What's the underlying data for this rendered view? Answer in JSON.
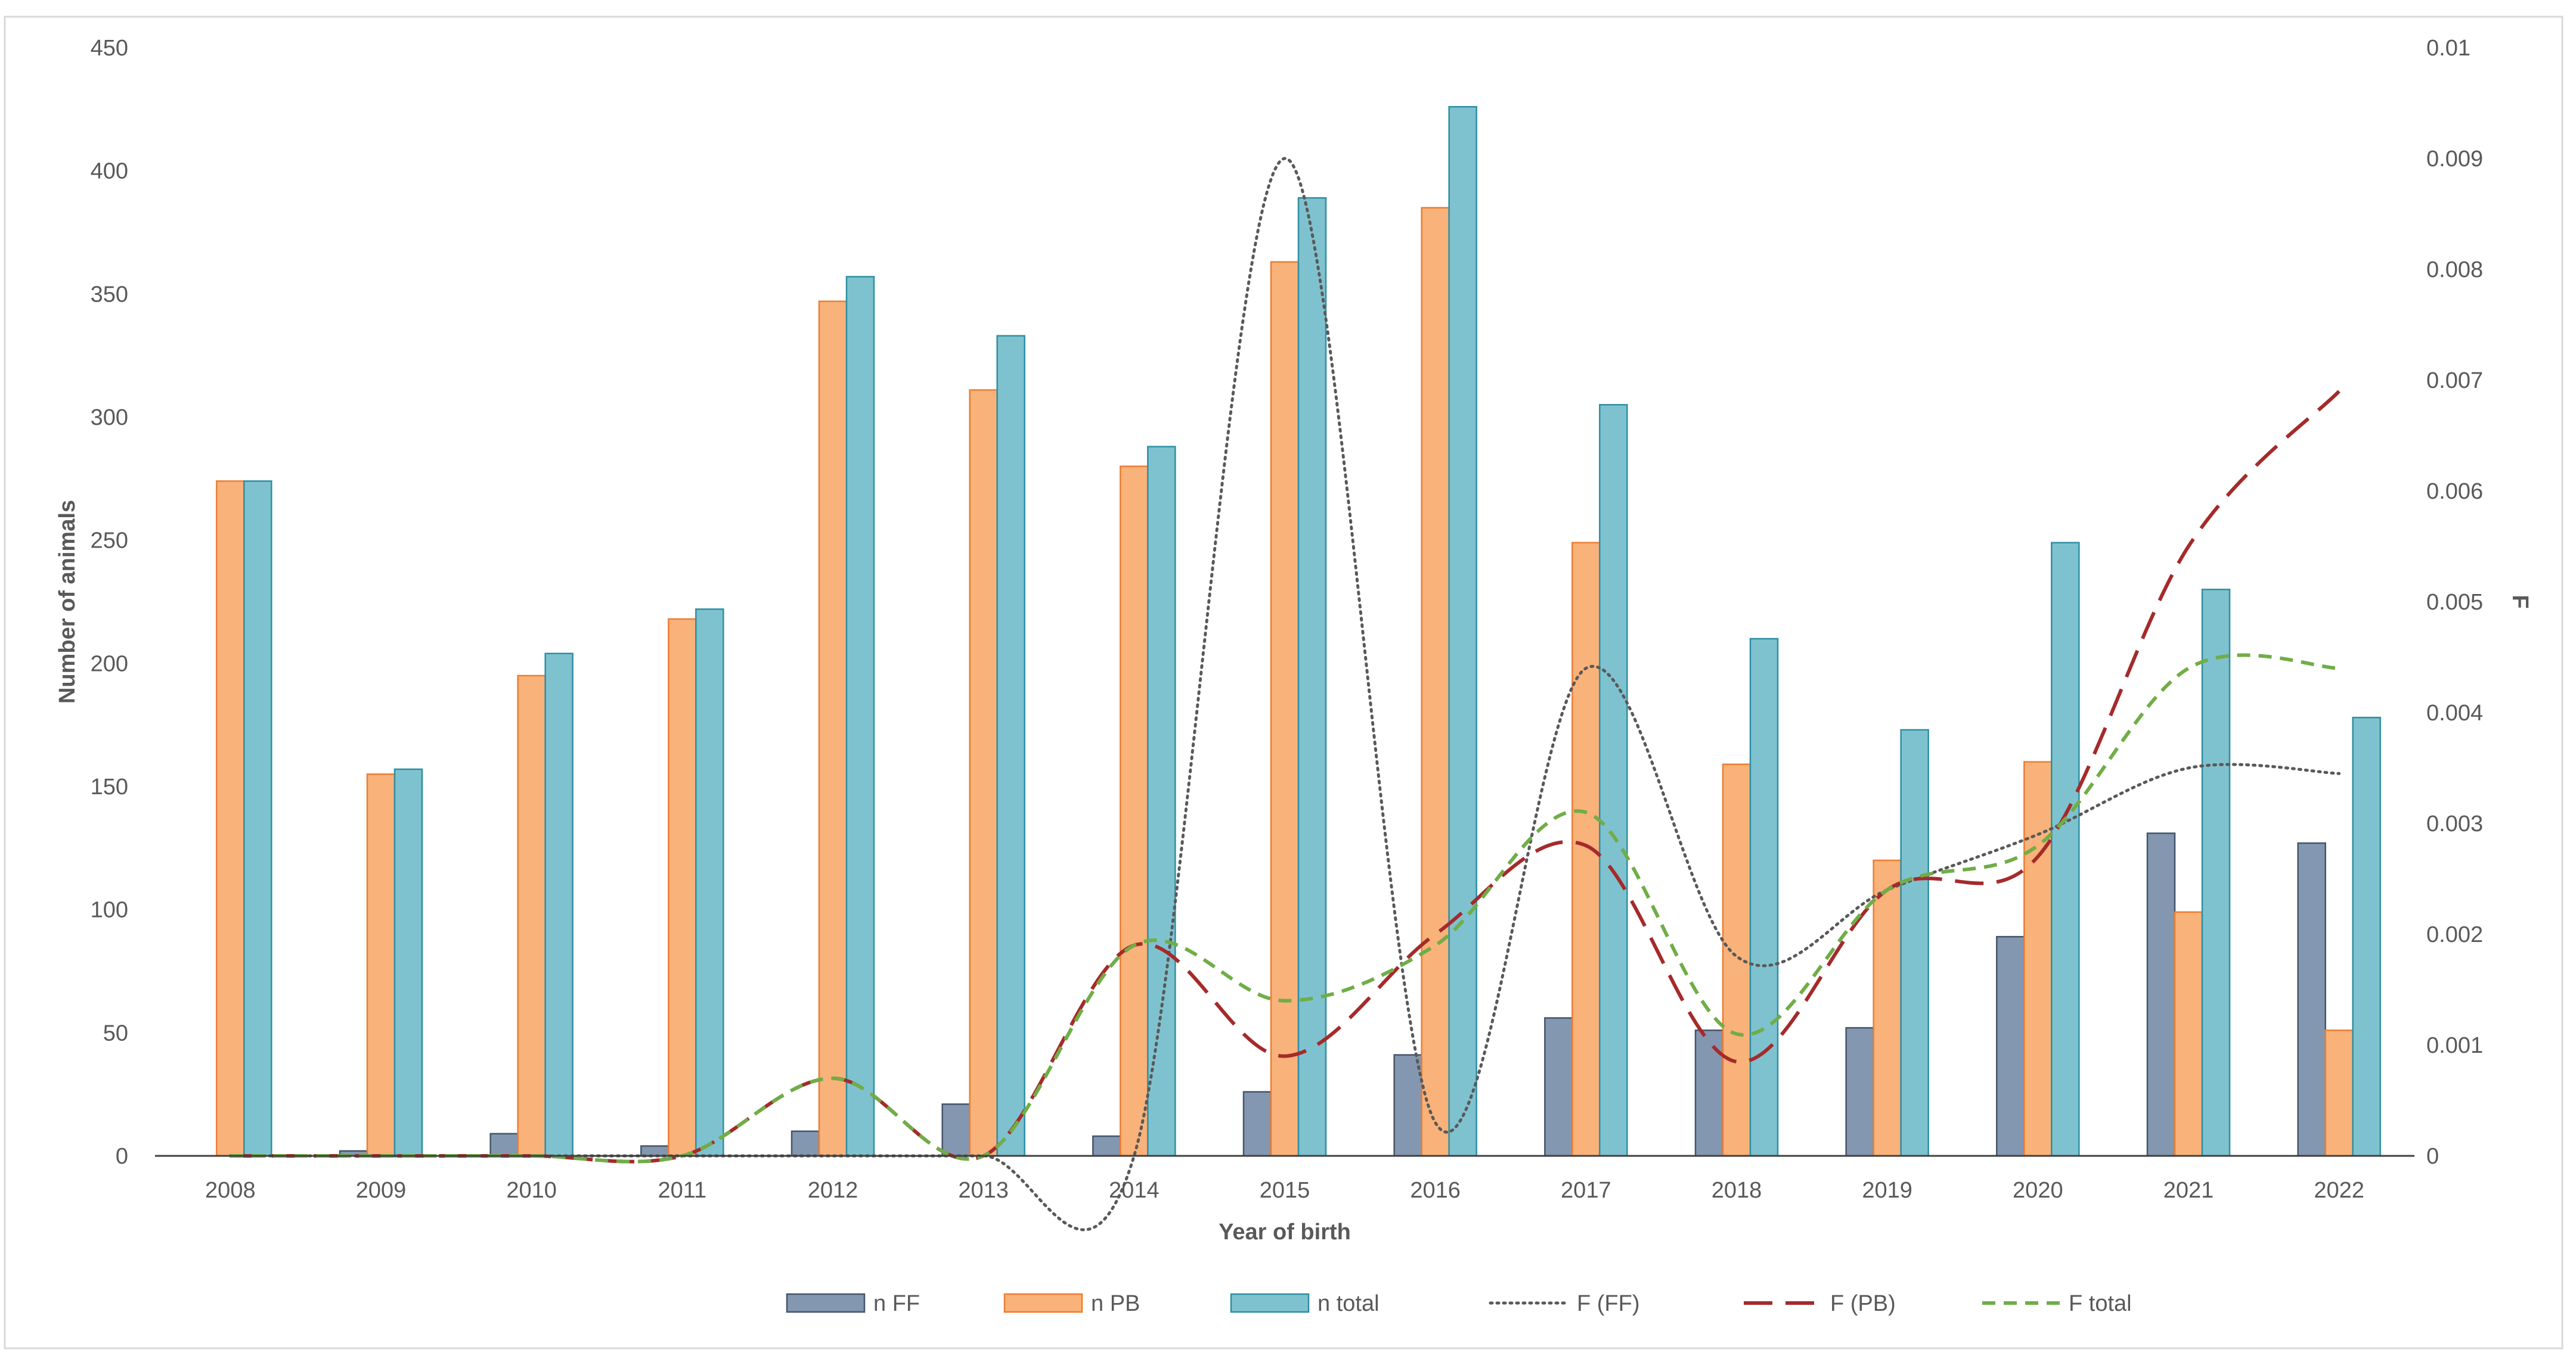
{
  "chart_data": {
    "type": "bar",
    "title": "",
    "xlabel": "Year of birth",
    "ylabel": "Number of animals",
    "y2label": "F",
    "categories": [
      "2008",
      "2009",
      "2010",
      "2011",
      "2012",
      "2013",
      "2014",
      "2015",
      "2016",
      "2017",
      "2018",
      "2019",
      "2020",
      "2021",
      "2022"
    ],
    "ylim": [
      0,
      450
    ],
    "yticks": [
      0,
      50,
      100,
      150,
      200,
      250,
      300,
      350,
      400,
      450
    ],
    "ytick_labels": [
      "0",
      "50",
      "100",
      "150",
      "200",
      "250",
      "300",
      "350",
      "400",
      "450"
    ],
    "y2lim": [
      0,
      0.01
    ],
    "y2ticks": [
      0,
      0.001,
      0.002,
      0.003,
      0.004,
      0.005,
      0.006,
      0.007,
      0.008,
      0.009,
      0.01
    ],
    "y2tick_labels": [
      "0",
      "0.001",
      "0.002",
      "0.003",
      "0.004",
      "0.005",
      "0.006",
      "0.007",
      "0.008",
      "0.009",
      "0.01"
    ],
    "grid": false,
    "legend_position": "bottom",
    "series": [
      {
        "name": "n FF",
        "type": "bar",
        "axis": "left",
        "color": "#8497b0",
        "stroke": "#44546a",
        "values": [
          0,
          2,
          9,
          4,
          10,
          21,
          8,
          26,
          41,
          56,
          51,
          52,
          89,
          131,
          127
        ]
      },
      {
        "name": "n PB",
        "type": "bar",
        "axis": "left",
        "color": "#f8b27a",
        "stroke": "#ed7d31",
        "values": [
          274,
          155,
          195,
          218,
          347,
          311,
          280,
          363,
          385,
          249,
          159,
          120,
          160,
          99,
          51
        ]
      },
      {
        "name": "n total",
        "type": "bar",
        "axis": "left",
        "color": "#7fc2cf",
        "stroke": "#2e8fa3",
        "values": [
          274,
          157,
          204,
          222,
          357,
          333,
          288,
          389,
          426,
          305,
          210,
          173,
          249,
          230,
          178
        ]
      },
      {
        "name": "F (FF)",
        "type": "line",
        "axis": "right",
        "color": "#595959",
        "dash": "dotted",
        "values": [
          0,
          0,
          0,
          0,
          0,
          0,
          0,
          0.009,
          0.0003,
          0.0044,
          0.0018,
          0.0024,
          0.0029,
          0.0035,
          0.00345
        ]
      },
      {
        "name": "F (PB)",
        "type": "line",
        "axis": "right",
        "color": "#a52a2a",
        "dash": "long-dash",
        "values": [
          0,
          0,
          0,
          0,
          0.0007,
          0,
          0.0019,
          0.0009,
          0.002,
          0.0028,
          0.00085,
          0.0024,
          0.0027,
          0.0055,
          0.0069
        ]
      },
      {
        "name": "F total",
        "type": "line",
        "axis": "right",
        "color": "#70ad47",
        "dash": "dashed",
        "values": [
          0,
          0,
          0,
          0,
          0.0007,
          0,
          0.0019,
          0.0014,
          0.0019,
          0.0031,
          0.0011,
          0.0024,
          0.0028,
          0.0044,
          0.0044
        ]
      }
    ]
  }
}
